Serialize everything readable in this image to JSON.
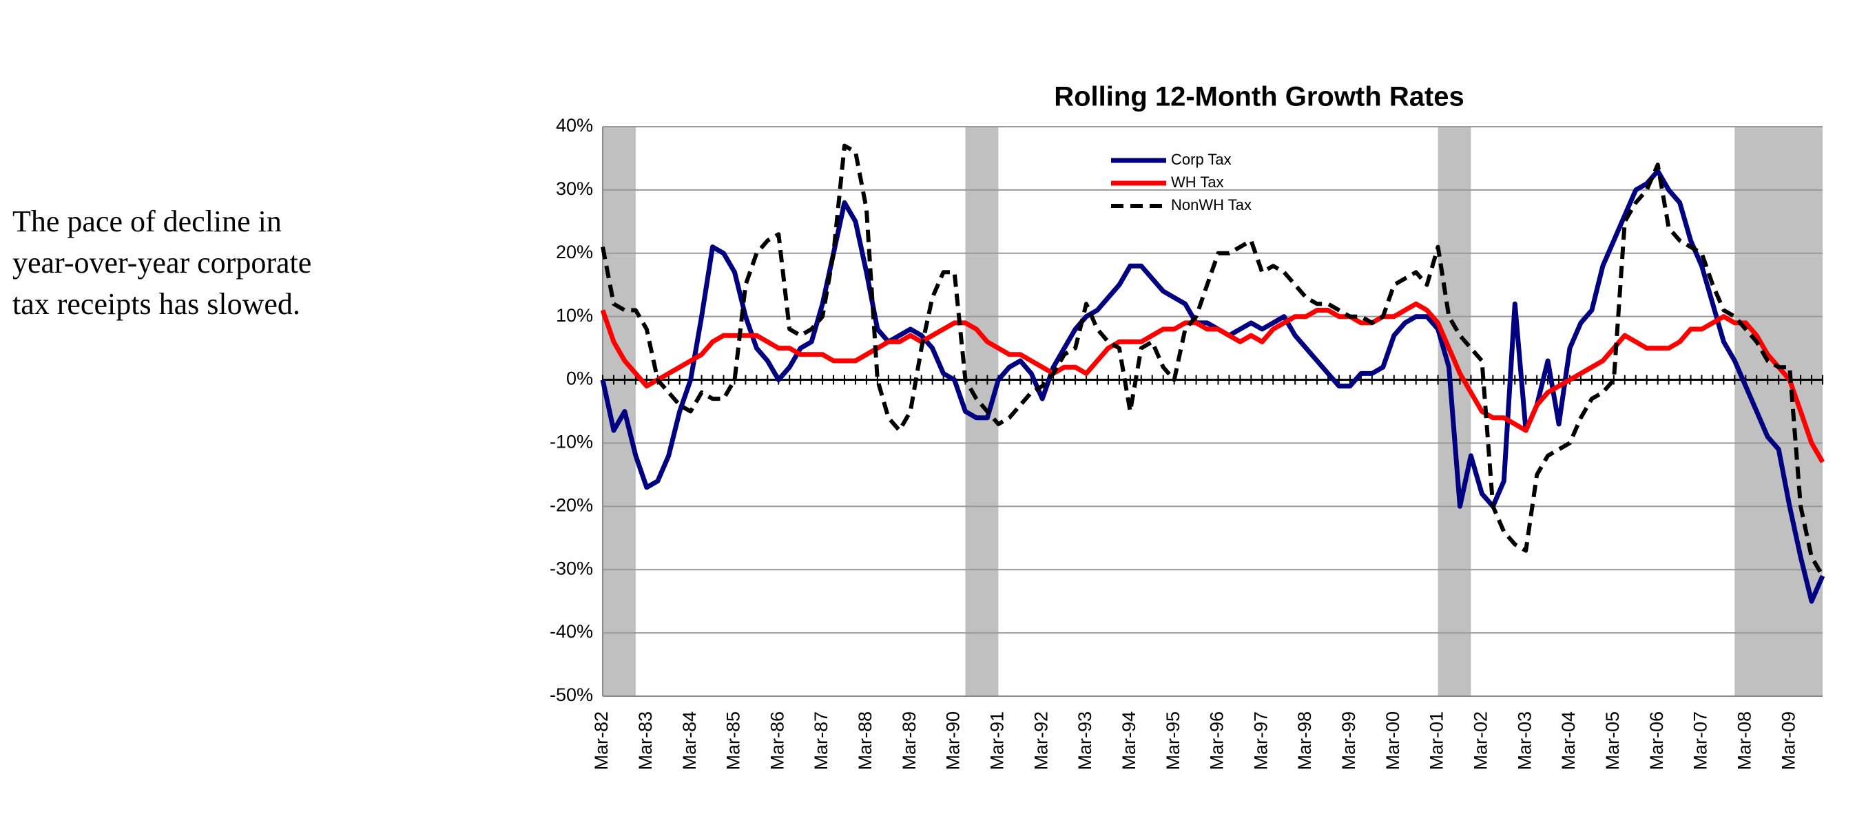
{
  "note_lines": [
    "The pace of decline in",
    "year-over-year corporate",
    "tax receipts has slowed."
  ],
  "chart_data": {
    "type": "line",
    "title": "Rolling 12-Month Growth Rates",
    "categories": [
      "Mar-82",
      null,
      null,
      null,
      "Mar-83",
      null,
      null,
      null,
      "Mar-84",
      null,
      null,
      null,
      "Mar-85",
      null,
      null,
      null,
      "Mar-86",
      null,
      null,
      null,
      "Mar-87",
      null,
      null,
      null,
      "Mar-88",
      null,
      null,
      null,
      "Mar-89",
      null,
      null,
      null,
      "Mar-90",
      null,
      null,
      null,
      "Mar-91",
      null,
      null,
      null,
      "Mar-92",
      null,
      null,
      null,
      "Mar-93",
      null,
      null,
      null,
      "Mar-94",
      null,
      null,
      null,
      "Mar-95",
      null,
      null,
      null,
      "Mar-96",
      null,
      null,
      null,
      "Mar-97",
      null,
      null,
      null,
      "Mar-98",
      null,
      null,
      null,
      "Mar-99",
      null,
      null,
      null,
      "Mar-00",
      null,
      null,
      null,
      "Mar-01",
      null,
      null,
      null,
      "Mar-02",
      null,
      null,
      null,
      "Mar-03",
      null,
      null,
      null,
      "Mar-04",
      null,
      null,
      null,
      "Mar-05",
      null,
      null,
      null,
      "Mar-06",
      null,
      null,
      null,
      "Mar-07",
      null,
      null,
      null,
      "Mar-08",
      null,
      null,
      null,
      "Mar-09",
      null,
      null,
      null
    ],
    "series": [
      {
        "name": "Corp Tax",
        "color": "#000080",
        "dashed": false,
        "values": [
          0,
          -8,
          -5,
          -12,
          -17,
          -16,
          -12,
          -5,
          0,
          10,
          21,
          20,
          17,
          10,
          5,
          3,
          0,
          2,
          5,
          6,
          12,
          20,
          28,
          25,
          17,
          8,
          6,
          7,
          8,
          7,
          5,
          1,
          0,
          -5,
          -6,
          -6,
          0,
          2,
          3,
          1,
          -3,
          2,
          5,
          8,
          10,
          11,
          13,
          15,
          18,
          18,
          16,
          14,
          13,
          12,
          9,
          9,
          8,
          7,
          8,
          9,
          8,
          9,
          10,
          7,
          5,
          3,
          1,
          -1,
          -1,
          1,
          1,
          2,
          7,
          9,
          10,
          10,
          8,
          2,
          -20,
          -12,
          -18,
          -20,
          -16,
          12,
          -8,
          -4,
          3,
          -7,
          5,
          9,
          11,
          18,
          22,
          26,
          30,
          31,
          33,
          30,
          28,
          22,
          18,
          12,
          6,
          3,
          -1,
          -5,
          -9,
          -11,
          -20,
          -28,
          -35,
          -31
        ]
      },
      {
        "name": "WH Tax",
        "color": "#ff0000",
        "dashed": false,
        "values": [
          11,
          6,
          3,
          1,
          -1,
          0,
          1,
          2,
          3,
          4,
          6,
          7,
          7,
          7,
          7,
          6,
          5,
          5,
          4,
          4,
          4,
          3,
          3,
          3,
          4,
          5,
          6,
          6,
          7,
          6,
          7,
          8,
          9,
          9,
          8,
          6,
          5,
          4,
          4,
          3,
          2,
          1,
          2,
          2,
          1,
          3,
          5,
          6,
          6,
          6,
          7,
          8,
          8,
          9,
          9,
          8,
          8,
          7,
          6,
          7,
          6,
          8,
          9,
          10,
          10,
          11,
          11,
          10,
          10,
          9,
          9,
          10,
          10,
          11,
          12,
          11,
          9,
          5,
          1,
          -2,
          -5,
          -6,
          -6,
          -7,
          -8,
          -4,
          -2,
          -1,
          0,
          1,
          2,
          3,
          5,
          7,
          6,
          5,
          5,
          5,
          6,
          8,
          8,
          9,
          10,
          9,
          9,
          7,
          4,
          2,
          0,
          -5,
          -10,
          -13
        ]
      },
      {
        "name": "NonWH Tax",
        "color": "#000000",
        "dashed": true,
        "values": [
          21,
          12,
          11,
          11,
          8,
          0,
          -2,
          -4,
          -5,
          -2,
          -3,
          -3,
          0,
          15,
          20,
          22,
          23,
          8,
          7,
          8,
          10,
          20,
          37,
          36,
          27,
          0,
          -6,
          -8,
          -5,
          5,
          13,
          17,
          17,
          0,
          -3,
          -5,
          -7,
          -6,
          -4,
          -2,
          -1,
          1,
          4,
          5,
          12,
          8,
          6,
          5,
          -5,
          5,
          6,
          2,
          0,
          8,
          10,
          15,
          20,
          20,
          21,
          22,
          17,
          18,
          17,
          15,
          13,
          12,
          12,
          11,
          10,
          10,
          9,
          10,
          15,
          16,
          17,
          15,
          21,
          10,
          7,
          5,
          3,
          -20,
          -24,
          -26,
          -27,
          -15,
          -12,
          -11,
          -10,
          -6,
          -3,
          -2,
          0,
          25,
          28,
          30,
          34,
          24,
          22,
          21,
          20,
          15,
          11,
          10,
          8,
          6,
          3,
          2,
          2,
          -20,
          -28,
          -31
        ]
      }
    ],
    "ylim": [
      -50,
      40
    ],
    "yticks": [
      {
        "value": -50,
        "label": "-50%"
      },
      {
        "value": -40,
        "label": "-40%"
      },
      {
        "value": -30,
        "label": "-30%"
      },
      {
        "value": -20,
        "label": "-20%"
      },
      {
        "value": -10,
        "label": "-10%"
      },
      {
        "value": 0,
        "label": "0%"
      },
      {
        "value": 10,
        "label": "10%"
      },
      {
        "value": 20,
        "label": "20%"
      },
      {
        "value": 30,
        "label": "30%"
      },
      {
        "value": 40,
        "label": "40%"
      }
    ],
    "grid": true,
    "shaded_ranges": [
      [
        0,
        3
      ],
      [
        33,
        36
      ],
      [
        76,
        79
      ],
      [
        103,
        111
      ]
    ],
    "shade_color": "#c0c0c0"
  }
}
